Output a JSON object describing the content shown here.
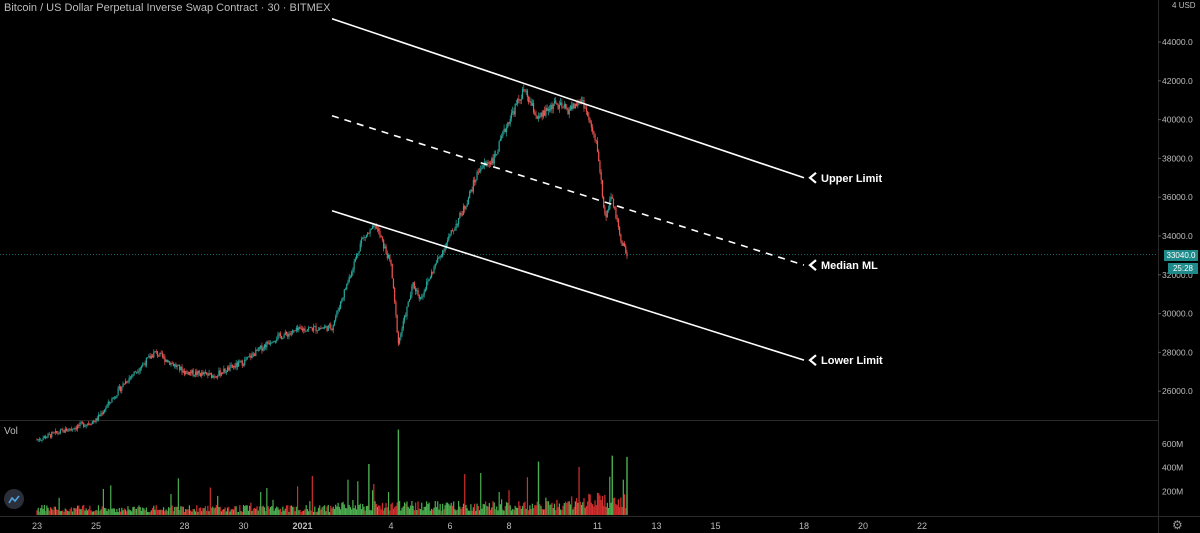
{
  "header": {
    "title": "Bitcoin / US Dollar Perpetual Inverse Swap Contract · 30 · BITMEX",
    "currency": "USD",
    "currency_marker": "4",
    "volume_label": "Vol"
  },
  "price_badge": {
    "price": "33040.0",
    "countdown": "25:28"
  },
  "colors": {
    "up": "#26a69a",
    "down": "#ef5350",
    "vol_up": "#4caf50",
    "vol_down": "#d32f2f",
    "channel": "#ffffff",
    "price_line": "#1e8a8a"
  },
  "chart_data": [
    {
      "type": "line",
      "subtype": "candlestick",
      "description": "BTC/USD 30-minute candles with Andrews pitchfork style channel",
      "x_tick_labels": [
        "23",
        "25",
        "28",
        "30",
        "2021",
        "4",
        "6",
        "8",
        "11",
        "13",
        "15",
        "18",
        "20",
        "22"
      ],
      "y_tick_labels": [
        "44000.0",
        "42000.0",
        "40000.0",
        "38000.0",
        "36000.0",
        "34000.0",
        "32000.0",
        "30000.0",
        "28000.0",
        "26000.0"
      ],
      "ylim": [
        24000,
        46000
      ],
      "last_price": 33040.0,
      "price_path": [
        {
          "x": "2020-12-23",
          "y": 23500
        },
        {
          "x": "2020-12-25",
          "y": 24500
        },
        {
          "x": "2020-12-26",
          "y": 26500
        },
        {
          "x": "2020-12-27",
          "y": 28000
        },
        {
          "x": "2020-12-28",
          "y": 27000
        },
        {
          "x": "2020-12-29",
          "y": 26800
        },
        {
          "x": "2020-12-30",
          "y": 27500
        },
        {
          "x": "2020-12-31",
          "y": 28700
        },
        {
          "x": "2021-01-01",
          "y": 29200
        },
        {
          "x": "2021-01-02",
          "y": 29300
        },
        {
          "x": "2021-01-02T18:00",
          "y": 32600
        },
        {
          "x": "2021-01-03",
          "y": 33800
        },
        {
          "x": "2021-01-03T12:00",
          "y": 34500
        },
        {
          "x": "2021-01-04",
          "y": 32500
        },
        {
          "x": "2021-01-04T06:00",
          "y": 28500
        },
        {
          "x": "2021-01-04T18:00",
          "y": 31500
        },
        {
          "x": "2021-01-05",
          "y": 30800
        },
        {
          "x": "2021-01-05T12:00",
          "y": 32500
        },
        {
          "x": "2021-01-06",
          "y": 34000
        },
        {
          "x": "2021-01-06T12:00",
          "y": 35500
        },
        {
          "x": "2021-01-07",
          "y": 37500
        },
        {
          "x": "2021-01-07T12:00",
          "y": 38000
        },
        {
          "x": "2021-01-08",
          "y": 40000
        },
        {
          "x": "2021-01-08T12:00",
          "y": 41500
        },
        {
          "x": "2021-01-09",
          "y": 40000
        },
        {
          "x": "2021-01-09T12:00",
          "y": 40800
        },
        {
          "x": "2021-01-10",
          "y": 40500
        },
        {
          "x": "2021-01-10T12:00",
          "y": 41000
        },
        {
          "x": "2021-01-11",
          "y": 38500
        },
        {
          "x": "2021-01-11T06:00",
          "y": 35000
        },
        {
          "x": "2021-01-11T12:00",
          "y": 36000
        },
        {
          "x": "2021-01-11T18:00",
          "y": 34000
        },
        {
          "x": "2021-01-12",
          "y": 33040
        }
      ],
      "channel_lines": [
        {
          "name": "Upper Limit",
          "style": "solid",
          "start": {
            "x": "2021-01-02",
            "y": 45200
          },
          "end": {
            "x": "2021-01-18",
            "y": 37000
          }
        },
        {
          "name": "Median ML",
          "style": "dashed",
          "start": {
            "x": "2021-01-02",
            "y": 40200
          },
          "end": {
            "x": "2021-01-18",
            "y": 32500
          }
        },
        {
          "name": "Lower Limit",
          "style": "solid",
          "start": {
            "x": "2021-01-02",
            "y": 35300
          },
          "end": {
            "x": "2021-01-18",
            "y": 27600
          }
        }
      ]
    },
    {
      "type": "bar",
      "description": "Volume histogram",
      "y_tick_labels": [
        "600M",
        "400M",
        "200M"
      ],
      "ylim": [
        0,
        750
      ]
    }
  ]
}
